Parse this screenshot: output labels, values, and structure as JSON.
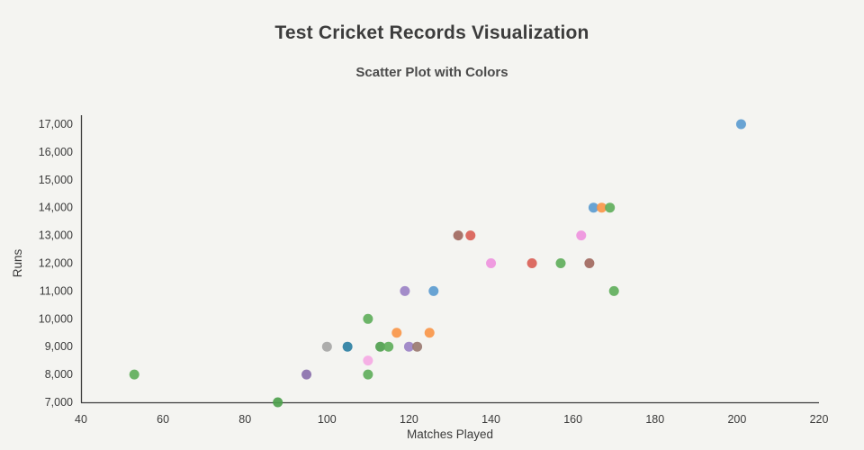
{
  "page": {
    "background": "#f4f4f1"
  },
  "colors": {
    "axis": "#3d3d3d",
    "tick_text": "#3b3b3b",
    "axis_title_text": "#3b3b3b"
  },
  "chart_data": {
    "type": "scatter",
    "title": "Test Cricket Records Visualization",
    "subtitle": "Scatter Plot with Colors",
    "xlabel": "Matches Played",
    "ylabel": "Runs",
    "xlim": [
      40,
      220
    ],
    "ylim": [
      7000,
      17000
    ],
    "xticks": [
      40,
      60,
      80,
      100,
      120,
      140,
      160,
      180,
      200,
      220
    ],
    "yticks": [
      7000,
      8000,
      9000,
      10000,
      11000,
      12000,
      13000,
      14000,
      15000,
      16000,
      17000
    ],
    "grid": false,
    "legend": false,
    "marker_size": 11,
    "points": [
      {
        "x": 201,
        "y": 17000,
        "color": "#5b9bd0"
      },
      {
        "x": 165,
        "y": 14000,
        "color": "#5b9bd0"
      },
      {
        "x": 167,
        "y": 14000,
        "color": "#f9964a"
      },
      {
        "x": 169,
        "y": 14000,
        "color": "#60ae5c"
      },
      {
        "x": 132,
        "y": 13000,
        "color": "#a1685f"
      },
      {
        "x": 135,
        "y": 13000,
        "color": "#d95f57"
      },
      {
        "x": 162,
        "y": 13000,
        "color": "#ee92de"
      },
      {
        "x": 140,
        "y": 12000,
        "color": "#ee92de"
      },
      {
        "x": 150,
        "y": 12000,
        "color": "#d95f57"
      },
      {
        "x": 157,
        "y": 12000,
        "color": "#60ae5c"
      },
      {
        "x": 164,
        "y": 12000,
        "color": "#a1685f"
      },
      {
        "x": 119,
        "y": 11000,
        "color": "#9b82c6"
      },
      {
        "x": 126,
        "y": 11000,
        "color": "#5b9bd0"
      },
      {
        "x": 170,
        "y": 11000,
        "color": "#60ae5c"
      },
      {
        "x": 110,
        "y": 10000,
        "color": "#60ae5c"
      },
      {
        "x": 117,
        "y": 9500,
        "color": "#f9964a"
      },
      {
        "x": 125,
        "y": 9500,
        "color": "#f9964a"
      },
      {
        "x": 100,
        "y": 9000,
        "color": "#a6a6a6"
      },
      {
        "x": 105,
        "y": 9000,
        "color": "#2d7fa3"
      },
      {
        "x": 113,
        "y": 9000,
        "color": "#4f9e4f"
      },
      {
        "x": 115,
        "y": 9000,
        "color": "#60ae5c"
      },
      {
        "x": 120,
        "y": 9000,
        "color": "#9b82c6"
      },
      {
        "x": 122,
        "y": 9000,
        "color": "#9a7a72"
      },
      {
        "x": 110,
        "y": 8500,
        "color": "#f4a9e4"
      },
      {
        "x": 95,
        "y": 8000,
        "color": "#8a70ad"
      },
      {
        "x": 53,
        "y": 8000,
        "color": "#60ae5c"
      },
      {
        "x": 110,
        "y": 8000,
        "color": "#60ae5c"
      },
      {
        "x": 88,
        "y": 7000,
        "color": "#4da04d"
      }
    ]
  }
}
